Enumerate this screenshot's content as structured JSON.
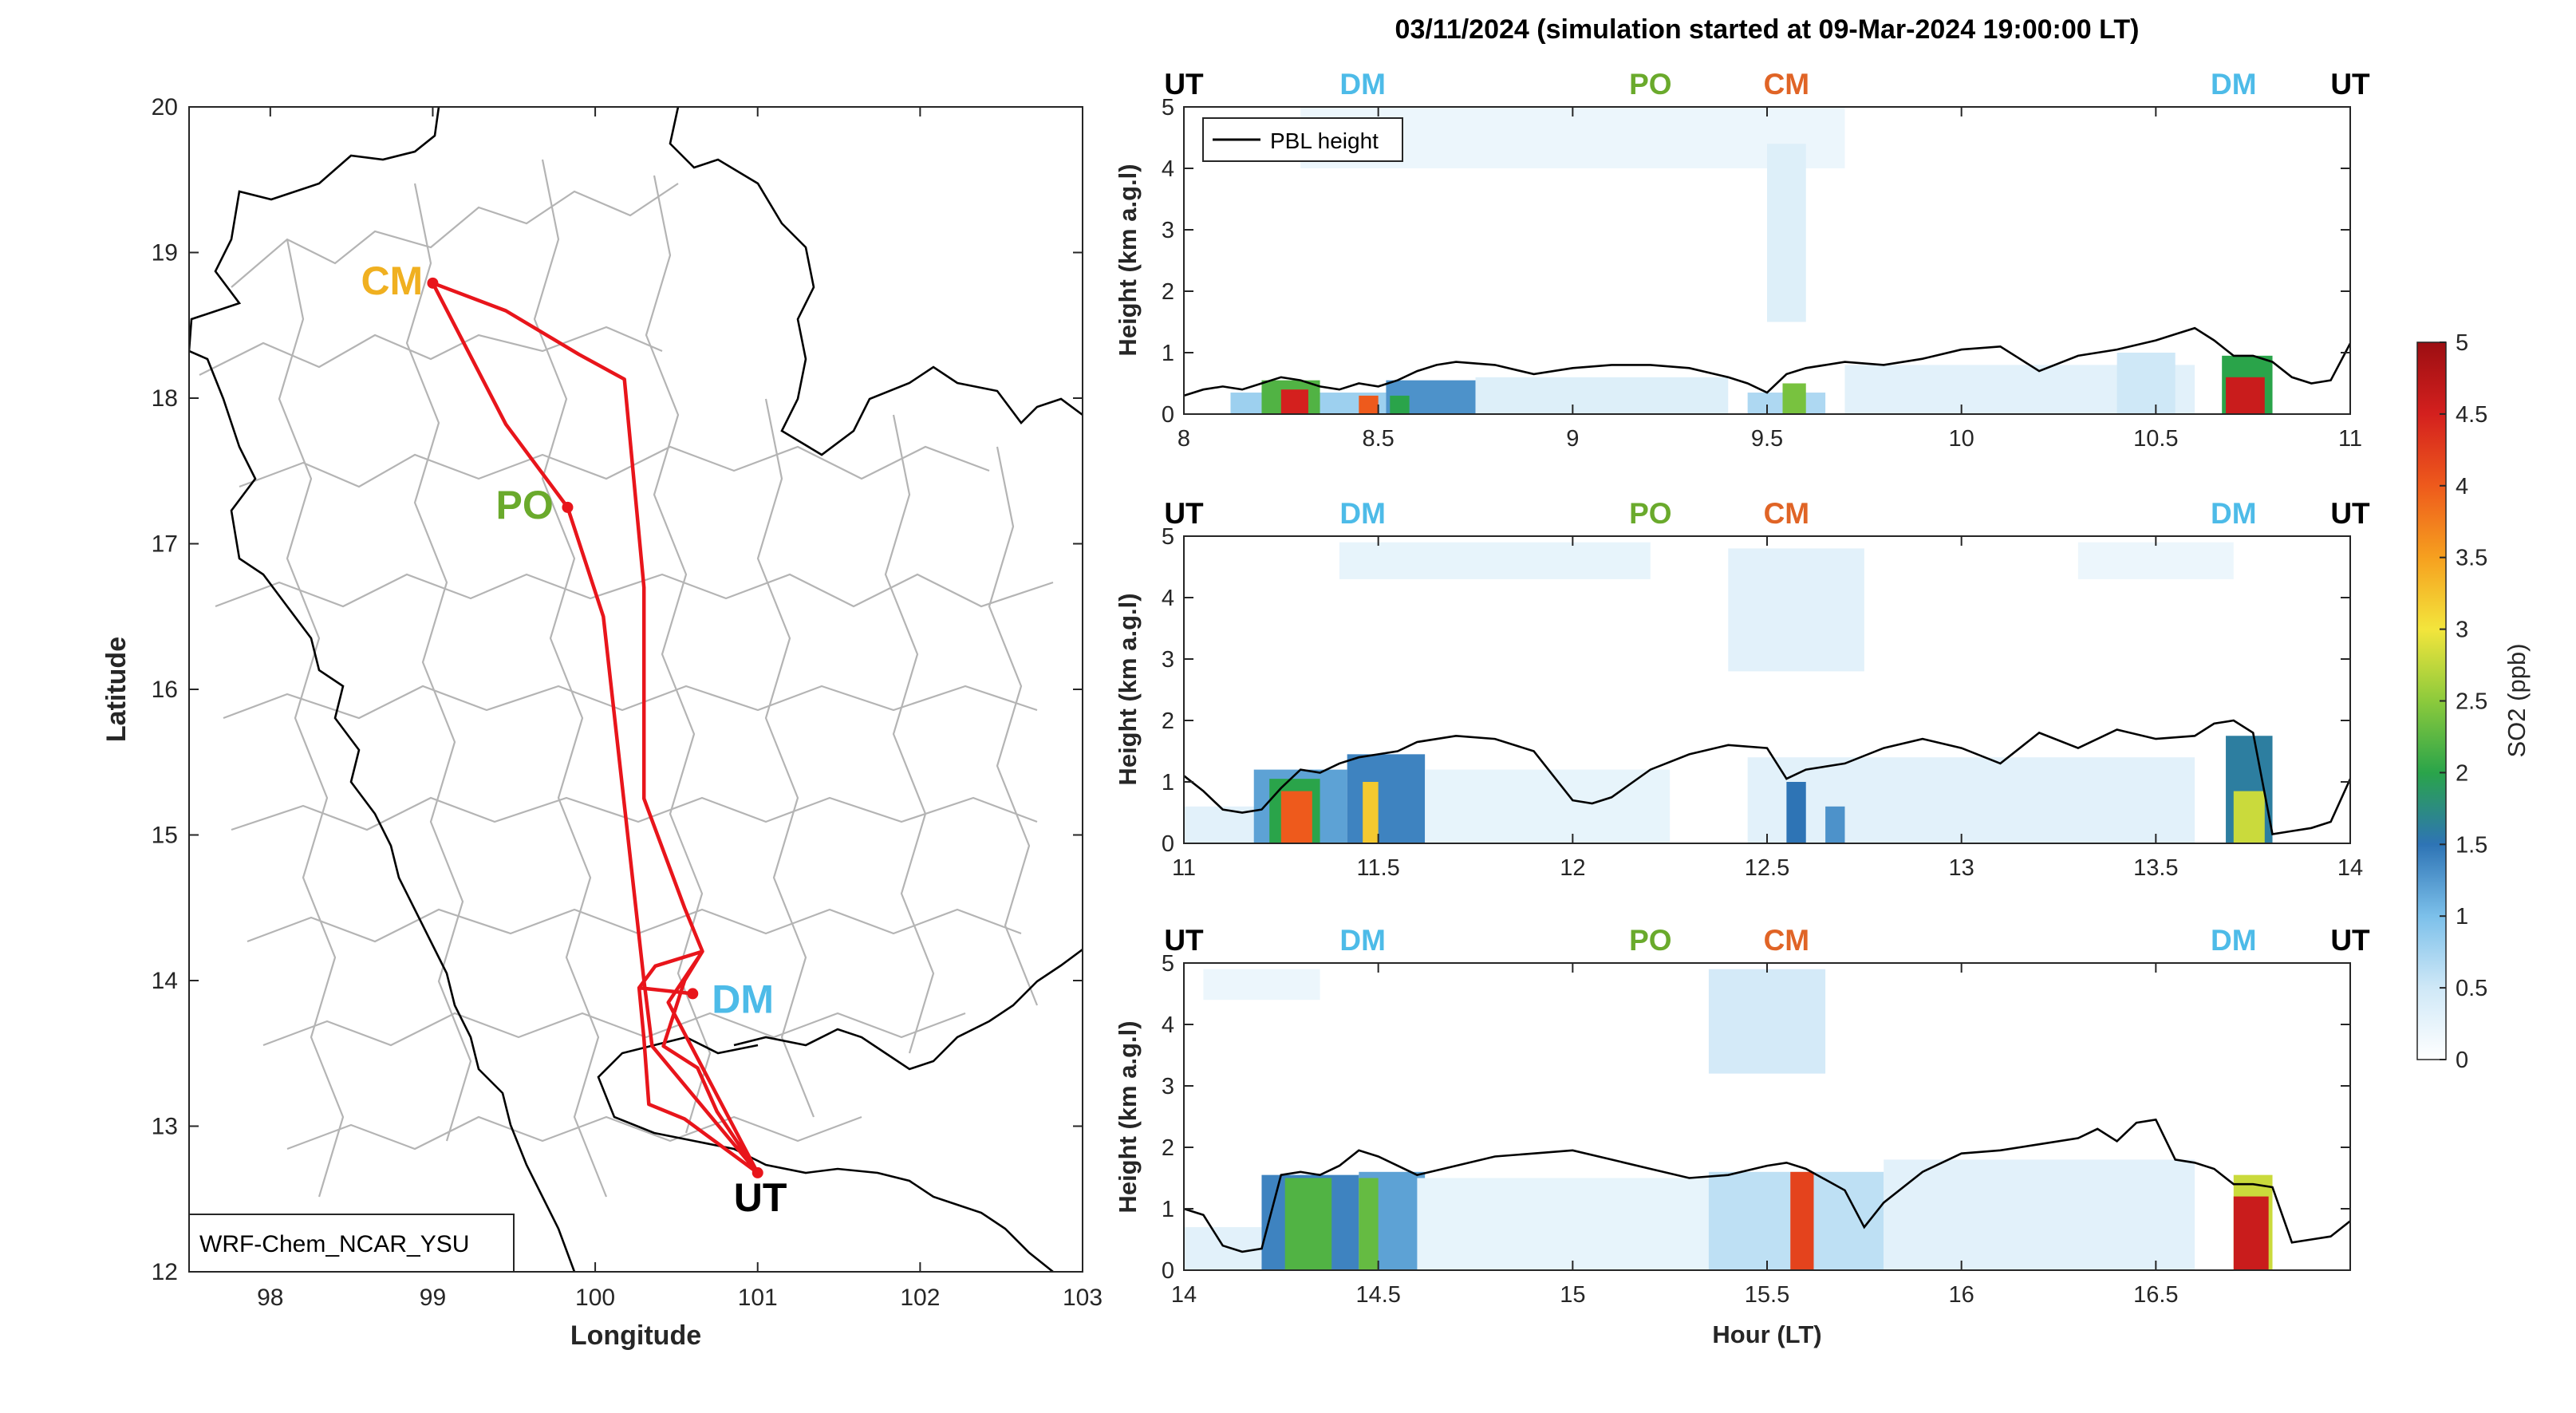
{
  "title": "03/11/2024 (simulation started at 09-Mar-2024 19:00:00 LT)",
  "colors": {
    "route": "#e8151b",
    "UT": "#000000",
    "DM": "#4dbbe8",
    "PO": "#6aaa2c",
    "CM_map": "#f0b020",
    "CM_profile": "#e06426",
    "pbl": "#000000",
    "border_country": "#000000",
    "border_province": "#b4b4b4"
  },
  "chart_data": [
    {
      "type": "line",
      "name": "map",
      "xlabel": "Longitude",
      "ylabel": "Latitude",
      "xlim": [
        97.5,
        103
      ],
      "ylim": [
        12,
        20
      ],
      "xticks": [
        98,
        99,
        100,
        101,
        102,
        103
      ],
      "yticks": [
        12,
        13,
        14,
        15,
        16,
        17,
        18,
        19,
        20
      ],
      "annotation": "WRF-Chem_NCAR_YSU",
      "sites": [
        {
          "label": "CM",
          "lon": 99.0,
          "lat": 18.79,
          "color": "#f0b020"
        },
        {
          "label": "PO",
          "lon": 99.83,
          "lat": 17.25,
          "color": "#6aaa2c"
        },
        {
          "label": "DM",
          "lon": 100.6,
          "lat": 13.91,
          "color": "#4dbbe8"
        },
        {
          "label": "UT",
          "lon": 101.0,
          "lat": 12.68,
          "color": "#000000"
        }
      ],
      "route": [
        [
          101.0,
          12.68
        ],
        [
          100.55,
          13.05
        ],
        [
          100.33,
          13.15
        ],
        [
          100.3,
          13.6
        ],
        [
          100.27,
          13.95
        ],
        [
          100.6,
          13.91
        ],
        [
          100.27,
          13.95
        ],
        [
          100.37,
          14.1
        ],
        [
          100.66,
          14.2
        ],
        [
          100.55,
          14.0
        ],
        [
          100.42,
          13.55
        ],
        [
          100.63,
          13.4
        ],
        [
          100.75,
          13.1
        ],
        [
          101.0,
          12.68
        ],
        [
          100.35,
          13.55
        ],
        [
          100.3,
          14.0
        ],
        [
          100.05,
          16.5
        ],
        [
          99.83,
          17.25
        ],
        [
          99.45,
          17.82
        ],
        [
          99.0,
          18.79
        ],
        [
          99.45,
          18.6
        ],
        [
          99.9,
          18.3
        ],
        [
          100.18,
          18.13
        ],
        [
          100.3,
          16.7
        ],
        [
          100.3,
          15.25
        ],
        [
          100.55,
          14.5
        ],
        [
          100.66,
          14.2
        ],
        [
          100.45,
          13.85
        ],
        [
          101.0,
          12.68
        ]
      ]
    },
    {
      "type": "heatmap",
      "name": "profile-1",
      "xlim": [
        8,
        11
      ],
      "ylim": [
        0,
        5
      ],
      "xticks": [
        8,
        8.5,
        9,
        9.5,
        10,
        10.5,
        11
      ],
      "yticks": [
        0,
        1,
        2,
        3,
        4,
        5
      ],
      "ylabel": "Height (km a.g.l)",
      "legend": "PBL height",
      "site_labels": [
        {
          "label": "UT",
          "x": 8.0
        },
        {
          "label": "DM",
          "x": 8.46
        },
        {
          "label": "PO",
          "x": 9.2
        },
        {
          "label": "CM",
          "x": 9.55
        },
        {
          "label": "DM",
          "x": 10.7
        },
        {
          "label": "UT",
          "x": 11.0
        }
      ],
      "pbl": {
        "x": [
          8.0,
          8.05,
          8.1,
          8.15,
          8.2,
          8.25,
          8.3,
          8.35,
          8.4,
          8.45,
          8.5,
          8.55,
          8.6,
          8.65,
          8.7,
          8.8,
          8.9,
          9.0,
          9.1,
          9.2,
          9.3,
          9.4,
          9.45,
          9.5,
          9.55,
          9.6,
          9.7,
          9.8,
          9.9,
          10.0,
          10.1,
          10.15,
          10.2,
          10.3,
          10.4,
          10.5,
          10.55,
          10.6,
          10.65,
          10.7,
          10.75,
          10.8,
          10.85,
          10.9,
          10.95,
          11.0
        ],
        "y": [
          0.3,
          0.4,
          0.45,
          0.4,
          0.5,
          0.6,
          0.55,
          0.45,
          0.4,
          0.5,
          0.45,
          0.55,
          0.7,
          0.8,
          0.85,
          0.8,
          0.65,
          0.75,
          0.8,
          0.8,
          0.75,
          0.6,
          0.5,
          0.35,
          0.65,
          0.75,
          0.85,
          0.8,
          0.9,
          1.05,
          1.1,
          0.9,
          0.7,
          0.95,
          1.05,
          1.2,
          1.3,
          1.4,
          1.2,
          0.95,
          0.95,
          0.85,
          0.6,
          0.5,
          0.55,
          1.15
        ]
      },
      "so2_patches": [
        {
          "x0": 8.12,
          "x1": 8.52,
          "y0": 0,
          "y1": 0.35,
          "v": 0.8
        },
        {
          "x0": 8.52,
          "x1": 8.75,
          "y0": 0,
          "y1": 0.55,
          "v": 1.3
        },
        {
          "x0": 8.75,
          "x1": 9.4,
          "y0": 0,
          "y1": 0.6,
          "v": 0.35
        },
        {
          "x0": 9.45,
          "x1": 9.65,
          "y0": 0,
          "y1": 0.35,
          "v": 0.7
        },
        {
          "x0": 9.7,
          "x1": 10.6,
          "y0": 0,
          "y1": 0.8,
          "v": 0.3
        },
        {
          "x0": 10.4,
          "x1": 10.55,
          "y0": 0,
          "y1": 1.0,
          "v": 0.5
        },
        {
          "x0": 8.3,
          "x1": 9.7,
          "y0": 4.0,
          "y1": 5.0,
          "v": 0.2
        },
        {
          "x0": 9.5,
          "x1": 9.6,
          "y0": 1.5,
          "y1": 4.4,
          "v": 0.35
        },
        {
          "x0": 8.2,
          "x1": 8.35,
          "y0": 0,
          "y1": 0.55,
          "v": 2.2
        },
        {
          "x0": 8.25,
          "x1": 8.32,
          "y0": 0,
          "y1": 0.4,
          "v": 4.5
        },
        {
          "x0": 8.45,
          "x1": 8.5,
          "y0": 0,
          "y1": 0.3,
          "v": 4.0
        },
        {
          "x0": 8.53,
          "x1": 8.58,
          "y0": 0,
          "y1": 0.3,
          "v": 2.0
        },
        {
          "x0": 9.54,
          "x1": 9.6,
          "y0": 0,
          "y1": 0.5,
          "v": 2.4
        },
        {
          "x0": 10.67,
          "x1": 10.8,
          "y0": 0,
          "y1": 0.95,
          "v": 2.0
        },
        {
          "x0": 10.68,
          "x1": 10.78,
          "y0": 0,
          "y1": 0.6,
          "v": 4.6
        }
      ]
    },
    {
      "type": "heatmap",
      "name": "profile-2",
      "xlim": [
        11,
        14
      ],
      "ylim": [
        0,
        5
      ],
      "xticks": [
        11,
        11.5,
        12,
        12.5,
        13,
        13.5,
        14
      ],
      "yticks": [
        0,
        1,
        2,
        3,
        4,
        5
      ],
      "ylabel": "Height (km a.g.l)",
      "site_labels": [
        {
          "label": "UT",
          "x": 11.0
        },
        {
          "label": "DM",
          "x": 11.46
        },
        {
          "label": "PO",
          "x": 12.2
        },
        {
          "label": "CM",
          "x": 12.55
        },
        {
          "label": "DM",
          "x": 13.7
        },
        {
          "label": "UT",
          "x": 14.0
        }
      ],
      "pbl": {
        "x": [
          11.0,
          11.05,
          11.1,
          11.15,
          11.2,
          11.25,
          11.3,
          11.35,
          11.4,
          11.45,
          11.5,
          11.55,
          11.6,
          11.7,
          11.8,
          11.9,
          11.95,
          12.0,
          12.05,
          12.1,
          12.2,
          12.3,
          12.4,
          12.5,
          12.55,
          12.6,
          12.7,
          12.8,
          12.9,
          13.0,
          13.1,
          13.2,
          13.3,
          13.4,
          13.5,
          13.6,
          13.65,
          13.7,
          13.75,
          13.8,
          13.85,
          13.9,
          13.95,
          14.0
        ],
        "y": [
          1.1,
          0.85,
          0.55,
          0.5,
          0.55,
          0.9,
          1.2,
          1.15,
          1.3,
          1.4,
          1.45,
          1.5,
          1.65,
          1.75,
          1.7,
          1.5,
          1.1,
          0.7,
          0.65,
          0.75,
          1.2,
          1.45,
          1.6,
          1.55,
          1.05,
          1.2,
          1.3,
          1.55,
          1.7,
          1.55,
          1.3,
          1.8,
          1.55,
          1.85,
          1.7,
          1.75,
          1.95,
          2.0,
          1.8,
          0.15,
          0.2,
          0.25,
          0.35,
          1.05
        ]
      },
      "so2_patches": [
        {
          "x0": 11.0,
          "x1": 11.6,
          "y0": 0,
          "y1": 0.6,
          "v": 0.3
        },
        {
          "x0": 11.18,
          "x1": 11.42,
          "y0": 0,
          "y1": 1.2,
          "v": 1.2
        },
        {
          "x0": 11.42,
          "x1": 11.62,
          "y0": 0,
          "y1": 1.45,
          "v": 1.4
        },
        {
          "x0": 11.62,
          "x1": 12.25,
          "y0": 0,
          "y1": 1.2,
          "v": 0.25
        },
        {
          "x0": 12.45,
          "x1": 13.6,
          "y0": 0,
          "y1": 1.4,
          "v": 0.3
        },
        {
          "x0": 11.4,
          "x1": 12.2,
          "y0": 4.3,
          "y1": 4.9,
          "v": 0.25
        },
        {
          "x0": 12.4,
          "x1": 12.75,
          "y0": 2.8,
          "y1": 4.8,
          "v": 0.3
        },
        {
          "x0": 13.3,
          "x1": 13.7,
          "y0": 4.3,
          "y1": 4.9,
          "v": 0.2
        },
        {
          "x0": 11.22,
          "x1": 11.35,
          "y0": 0,
          "y1": 1.05,
          "v": 2.0
        },
        {
          "x0": 11.25,
          "x1": 11.33,
          "y0": 0,
          "y1": 0.85,
          "v": 4.0
        },
        {
          "x0": 11.46,
          "x1": 11.5,
          "y0": 0,
          "y1": 1.0,
          "v": 3.2
        },
        {
          "x0": 12.55,
          "x1": 12.6,
          "y0": 0,
          "y1": 1.0,
          "v": 1.5
        },
        {
          "x0": 12.65,
          "x1": 12.7,
          "y0": 0,
          "y1": 0.6,
          "v": 1.3
        },
        {
          "x0": 13.68,
          "x1": 13.8,
          "y0": 0,
          "y1": 1.75,
          "v": 1.6
        },
        {
          "x0": 13.7,
          "x1": 13.78,
          "y0": 0,
          "y1": 0.85,
          "v": 2.8
        }
      ]
    },
    {
      "type": "heatmap",
      "name": "profile-3",
      "xlim": [
        14,
        17
      ],
      "ylim": [
        0,
        5
      ],
      "xticks": [
        14,
        14.5,
        15,
        15.5,
        16,
        16.5
      ],
      "yticks": [
        0,
        1,
        2,
        3,
        4,
        5
      ],
      "ylabel": "Height (km a.g.l)",
      "xlabel": "Hour (LT)",
      "site_labels": [
        {
          "label": "UT",
          "x": 14.0
        },
        {
          "label": "DM",
          "x": 14.46
        },
        {
          "label": "PO",
          "x": 15.2
        },
        {
          "label": "CM",
          "x": 15.55
        },
        {
          "label": "DM",
          "x": 16.7
        },
        {
          "label": "UT",
          "x": 17.0
        }
      ],
      "pbl": {
        "x": [
          14.0,
          14.05,
          14.1,
          14.15,
          14.2,
          14.25,
          14.3,
          14.35,
          14.4,
          14.45,
          14.5,
          14.6,
          14.7,
          14.8,
          14.9,
          15.0,
          15.1,
          15.2,
          15.3,
          15.4,
          15.5,
          15.55,
          15.6,
          15.7,
          15.75,
          15.8,
          15.9,
          16.0,
          16.1,
          16.2,
          16.3,
          16.35,
          16.4,
          16.45,
          16.5,
          16.55,
          16.6,
          16.65,
          16.7,
          16.75,
          16.8,
          16.85,
          16.9,
          16.95,
          17.0
        ],
        "y": [
          1.0,
          0.9,
          0.4,
          0.3,
          0.35,
          1.55,
          1.6,
          1.55,
          1.7,
          1.95,
          1.85,
          1.55,
          1.7,
          1.85,
          1.9,
          1.95,
          1.8,
          1.65,
          1.5,
          1.55,
          1.7,
          1.75,
          1.65,
          1.3,
          0.7,
          1.1,
          1.6,
          1.9,
          1.95,
          2.05,
          2.15,
          2.3,
          2.1,
          2.4,
          2.45,
          1.8,
          1.75,
          1.65,
          1.4,
          1.4,
          1.35,
          0.45,
          0.5,
          0.55,
          0.8
        ]
      },
      "so2_patches": [
        {
          "x0": 14.0,
          "x1": 14.6,
          "y0": 0,
          "y1": 0.7,
          "v": 0.3
        },
        {
          "x0": 14.2,
          "x1": 14.45,
          "y0": 0,
          "y1": 1.55,
          "v": 1.4
        },
        {
          "x0": 14.45,
          "x1": 14.62,
          "y0": 0,
          "y1": 1.6,
          "v": 1.2
        },
        {
          "x0": 14.6,
          "x1": 15.4,
          "y0": 0,
          "y1": 1.5,
          "v": 0.25
        },
        {
          "x0": 15.35,
          "x1": 15.8,
          "y0": 0,
          "y1": 1.6,
          "v": 0.6
        },
        {
          "x0": 15.8,
          "x1": 16.6,
          "y0": 0,
          "y1": 1.8,
          "v": 0.3
        },
        {
          "x0": 14.05,
          "x1": 14.35,
          "y0": 4.4,
          "y1": 4.9,
          "v": 0.2
        },
        {
          "x0": 15.35,
          "x1": 15.65,
          "y0": 3.2,
          "y1": 4.9,
          "v": 0.45
        },
        {
          "x0": 14.26,
          "x1": 14.38,
          "y0": 0,
          "y1": 1.5,
          "v": 2.2
        },
        {
          "x0": 14.45,
          "x1": 14.5,
          "y0": 0,
          "y1": 1.5,
          "v": 2.3
        },
        {
          "x0": 15.56,
          "x1": 15.62,
          "y0": 0,
          "y1": 1.6,
          "v": 4.2
        },
        {
          "x0": 16.7,
          "x1": 16.8,
          "y0": 0,
          "y1": 1.55,
          "v": 2.8
        },
        {
          "x0": 16.7,
          "x1": 16.79,
          "y0": 0,
          "y1": 1.2,
          "v": 4.6
        }
      ]
    }
  ],
  "colorbar": {
    "label": "SO2 (ppb)",
    "min": 0,
    "max": 5,
    "ticks": [
      "0",
      "0.5",
      "1",
      "1.5",
      "2",
      "2.5",
      "3",
      "3.5",
      "4",
      "4.5",
      "5"
    ]
  }
}
